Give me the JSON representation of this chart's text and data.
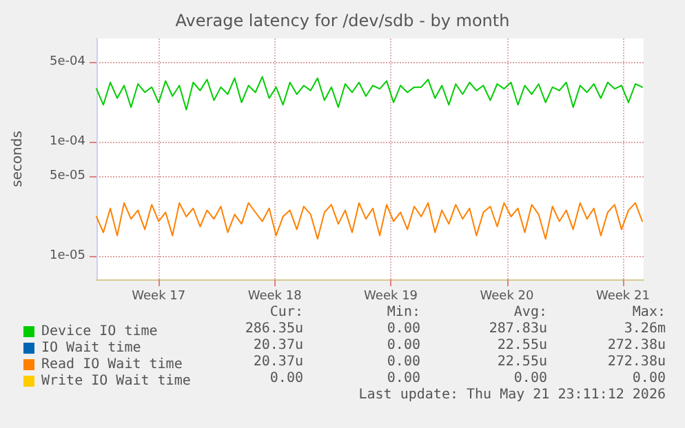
{
  "chart_data": {
    "type": "line",
    "title": "Average latency for /dev/sdb - by month",
    "ylabel": "seconds",
    "log": "y",
    "grid": true,
    "legend": "bottom",
    "marker": "none",
    "line_style": "solid",
    "xlim": [
      "2026-04-19T18:00",
      "2026-05-22T18:00"
    ],
    "xticks": [
      {
        "value": "2026-04-23T12:00",
        "label": "Week 17"
      },
      {
        "value": "2026-04-30T12:00",
        "label": "Week 18"
      },
      {
        "value": "2026-05-07T12:00",
        "label": "Week 19"
      },
      {
        "value": "2026-05-14T12:00",
        "label": "Week 20"
      },
      {
        "value": "2026-05-21T12:00",
        "label": "Week 21"
      }
    ],
    "ylim": [
      6.2e-06,
      0.0008
    ],
    "yticks": [
      {
        "value": 1e-05,
        "label": "1e-05"
      },
      {
        "value": 5e-05,
        "label": "5e-05"
      },
      {
        "value": 0.0001,
        "label": "1e-04"
      },
      {
        "value": 0.0005,
        "label": "5e-04"
      }
    ],
    "x": [
      "2026-04-19T18:00",
      "2026-04-20T04:00",
      "2026-04-20T14:00",
      "2026-04-21T00:00",
      "2026-04-21T10:00",
      "2026-04-21T20:00",
      "2026-04-22T06:00",
      "2026-04-22T16:00",
      "2026-04-23T02:00",
      "2026-04-23T12:00",
      "2026-04-23T22:00",
      "2026-04-24T08:00",
      "2026-04-24T18:00",
      "2026-04-25T04:00",
      "2026-04-25T14:00",
      "2026-04-26T00:00",
      "2026-04-26T10:00",
      "2026-04-26T20:00",
      "2026-04-27T06:00",
      "2026-04-27T16:00",
      "2026-04-28T02:00",
      "2026-04-28T12:00",
      "2026-04-28T22:00",
      "2026-04-29T08:00",
      "2026-04-29T18:00",
      "2026-04-30T04:00",
      "2026-04-30T14:00",
      "2026-05-01T00:00",
      "2026-05-01T10:00",
      "2026-05-01T20:00",
      "2026-05-02T06:00",
      "2026-05-02T16:00",
      "2026-05-03T02:00",
      "2026-05-03T12:00",
      "2026-05-03T22:00",
      "2026-05-04T08:00",
      "2026-05-04T18:00",
      "2026-05-05T04:00",
      "2026-05-05T14:00",
      "2026-05-06T00:00",
      "2026-05-06T10:00",
      "2026-05-06T20:00",
      "2026-05-07T06:00",
      "2026-05-07T16:00",
      "2026-05-08T02:00",
      "2026-05-08T12:00",
      "2026-05-08T22:00",
      "2026-05-09T08:00",
      "2026-05-09T18:00",
      "2026-05-10T04:00",
      "2026-05-10T14:00",
      "2026-05-11T00:00",
      "2026-05-11T10:00",
      "2026-05-11T20:00",
      "2026-05-12T06:00",
      "2026-05-12T16:00",
      "2026-05-13T02:00",
      "2026-05-13T12:00",
      "2026-05-13T22:00",
      "2026-05-14T08:00",
      "2026-05-14T18:00",
      "2026-05-15T04:00",
      "2026-05-15T14:00",
      "2026-05-16T00:00",
      "2026-05-16T10:00",
      "2026-05-16T20:00",
      "2026-05-17T06:00",
      "2026-05-17T16:00",
      "2026-05-18T02:00",
      "2026-05-18T12:00",
      "2026-05-18T22:00",
      "2026-05-19T08:00",
      "2026-05-19T18:00",
      "2026-05-20T04:00",
      "2026-05-20T14:00",
      "2026-05-21T00:00",
      "2026-05-21T10:00",
      "2026-05-21T20:00",
      "2026-05-22T06:00",
      "2026-05-22T16:00"
    ],
    "series": [
      {
        "name": "Device IO time",
        "color": "#00cc00",
        "values": [
          0.00029,
          0.00021,
          0.00033,
          0.00024,
          0.00031,
          0.0002,
          0.00032,
          0.00027,
          0.0003,
          0.00022,
          0.00034,
          0.00025,
          0.00031,
          0.00019,
          0.00033,
          0.00028,
          0.00035,
          0.00023,
          0.0003,
          0.00026,
          0.00036,
          0.00022,
          0.00031,
          0.00027,
          0.00037,
          0.00024,
          0.0003,
          0.00021,
          0.00033,
          0.00026,
          0.00031,
          0.00028,
          0.00036,
          0.00023,
          0.0003,
          0.0002,
          0.00032,
          0.00027,
          0.00033,
          0.00025,
          0.00031,
          0.00029,
          0.00034,
          0.00022,
          0.00031,
          0.00027,
          0.0003,
          0.0003,
          0.00035,
          0.00024,
          0.00031,
          0.00021,
          0.00032,
          0.00026,
          0.00033,
          0.00028,
          0.00031,
          0.00023,
          0.00032,
          0.00029,
          0.00033,
          0.00021,
          0.00031,
          0.00026,
          0.00032,
          0.00022,
          0.0003,
          0.00028,
          0.00033,
          0.0002,
          0.00031,
          0.00027,
          0.00032,
          0.00024,
          0.00033,
          0.00029,
          0.00031,
          0.00022,
          0.00032,
          0.0003
        ]
      },
      {
        "name": "IO Wait time",
        "color": "#0066b3",
        "values": [
          null,
          null,
          null,
          null,
          null,
          null,
          null,
          null,
          null,
          null,
          null,
          null,
          null,
          null,
          null,
          null,
          null,
          null,
          null,
          null,
          null,
          null,
          null,
          null,
          null,
          null,
          null,
          null,
          null,
          null,
          null,
          null,
          null,
          null,
          null,
          null,
          null,
          null,
          null,
          null,
          null,
          null,
          null,
          null,
          null,
          null,
          null,
          null,
          null,
          null,
          null,
          null,
          null,
          null,
          null,
          null,
          null,
          null,
          null,
          null,
          null,
          null,
          null,
          null,
          null,
          null,
          null,
          null,
          null,
          null,
          null,
          null,
          null,
          null,
          null,
          null,
          null,
          null,
          null,
          null
        ]
      },
      {
        "name": "Read IO Wait time",
        "color": "#ff8000",
        "values": [
          2.2e-05,
          1.6e-05,
          2.6e-05,
          1.5e-05,
          2.9e-05,
          2.1e-05,
          2.5e-05,
          1.7e-05,
          2.8e-05,
          2e-05,
          2.4e-05,
          1.5e-05,
          2.9e-05,
          2.2e-05,
          2.6e-05,
          1.8e-05,
          2.5e-05,
          2.1e-05,
          2.7e-05,
          1.6e-05,
          2.3e-05,
          1.9e-05,
          2.9e-05,
          2.4e-05,
          2e-05,
          2.6e-05,
          1.5e-05,
          2.2e-05,
          2.5e-05,
          1.7e-05,
          2.7e-05,
          2.3e-05,
          1.4e-05,
          2.4e-05,
          2.8e-05,
          1.9e-05,
          2.5e-05,
          1.6e-05,
          2.9e-05,
          2.1e-05,
          2.6e-05,
          1.5e-05,
          2.8e-05,
          2e-05,
          2.4e-05,
          1.7e-05,
          2.7e-05,
          2.2e-05,
          2.9e-05,
          1.6e-05,
          2.5e-05,
          1.9e-05,
          2.8e-05,
          2.1e-05,
          2.6e-05,
          1.5e-05,
          2.4e-05,
          2.7e-05,
          1.8e-05,
          2.9e-05,
          2.2e-05,
          2.6e-05,
          1.6e-05,
          2.8e-05,
          2.3e-05,
          1.4e-05,
          2.7e-05,
          2e-05,
          2.5e-05,
          1.7e-05,
          2.9e-05,
          2.1e-05,
          2.6e-05,
          1.5e-05,
          2.4e-05,
          2.8e-05,
          1.7e-05,
          2.5e-05,
          2.9e-05,
          2e-05
        ]
      },
      {
        "name": "Write IO Wait time",
        "color": "#ffcc00",
        "values": [
          null,
          null,
          null,
          null,
          null,
          null,
          null,
          null,
          null,
          null,
          null,
          null,
          null,
          null,
          null,
          null,
          null,
          null,
          null,
          null,
          null,
          null,
          null,
          null,
          null,
          null,
          null,
          null,
          null,
          null,
          null,
          null,
          null,
          null,
          null,
          null,
          null,
          null,
          null,
          null,
          null,
          null,
          null,
          null,
          null,
          null,
          null,
          null,
          null,
          null,
          null,
          null,
          null,
          null,
          null,
          null,
          null,
          null,
          null,
          null,
          null,
          null,
          null,
          null,
          null,
          null,
          null,
          null,
          null,
          null,
          null,
          null,
          null,
          null,
          null,
          null,
          null,
          null,
          null,
          null
        ]
      }
    ],
    "annotations": [
      "Cur:",
      "Min:",
      "Avg:",
      "Max:",
      "286.35u",
      "0.00",
      "287.83u",
      "3.26m",
      "20.37u",
      "0.00",
      "22.55u",
      "272.38u",
      "20.37u",
      "0.00",
      "22.55u",
      "272.38u",
      "0.00",
      "0.00",
      "0.00",
      "0.00",
      "Last update: Thu May 21 23:11:12 2026"
    ]
  }
}
